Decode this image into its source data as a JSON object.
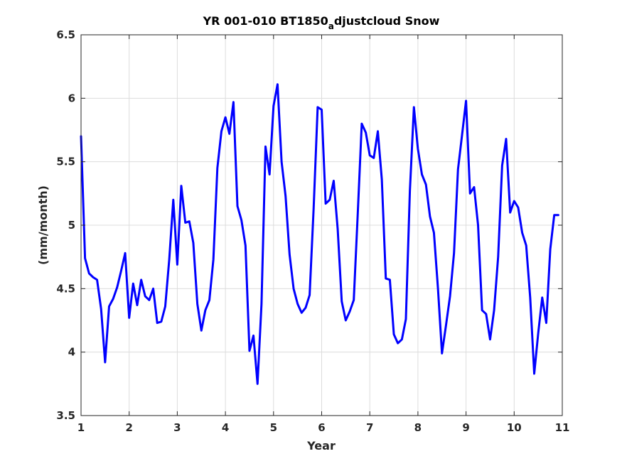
{
  "chart_data": {
    "type": "line",
    "title": "YR 001-010 BT1850",
    "title_subscript": "a",
    "title_tail": "djustcloud Snow",
    "xlabel": "Year",
    "ylabel": "(mm/month)",
    "xlim": [
      1,
      11
    ],
    "ylim": [
      3.5,
      6.5
    ],
    "xticks": [
      1,
      2,
      3,
      4,
      5,
      6,
      7,
      8,
      9,
      10,
      11
    ],
    "yticks": [
      3.5,
      4,
      4.5,
      5,
      5.5,
      6,
      6.5
    ],
    "xtick_labels": [
      "1",
      "2",
      "3",
      "4",
      "5",
      "6",
      "7",
      "8",
      "9",
      "10",
      "11"
    ],
    "ytick_labels": [
      "3.5",
      "4",
      "4.5",
      "5",
      "5.5",
      "6",
      "6.5"
    ],
    "grid": true,
    "series": [
      {
        "color": "#0000ff",
        "x": [
          1.0,
          1.083,
          1.167,
          1.25,
          1.333,
          1.417,
          1.5,
          1.583,
          1.667,
          1.75,
          1.833,
          1.917,
          2.0,
          2.083,
          2.167,
          2.25,
          2.333,
          2.417,
          2.5,
          2.583,
          2.667,
          2.75,
          2.833,
          2.917,
          3.0,
          3.083,
          3.167,
          3.25,
          3.333,
          3.417,
          3.5,
          3.583,
          3.667,
          3.75,
          3.833,
          3.917,
          4.0,
          4.083,
          4.167,
          4.25,
          4.333,
          4.417,
          4.5,
          4.583,
          4.667,
          4.75,
          4.833,
          4.917,
          5.0,
          5.083,
          5.167,
          5.25,
          5.333,
          5.417,
          5.5,
          5.583,
          5.667,
          5.75,
          5.833,
          5.917,
          6.0,
          6.083,
          6.167,
          6.25,
          6.333,
          6.417,
          6.5,
          6.583,
          6.667,
          6.75,
          6.833,
          6.917,
          7.0,
          7.083,
          7.167,
          7.25,
          7.333,
          7.417,
          7.5,
          7.583,
          7.667,
          7.75,
          7.833,
          7.917,
          8.0,
          8.083,
          8.167,
          8.25,
          8.333,
          8.417,
          8.5,
          8.583,
          8.667,
          8.75,
          8.833,
          8.917,
          9.0,
          9.083,
          9.167,
          9.25,
          9.333,
          9.417,
          9.5,
          9.583,
          9.667,
          9.75,
          9.833,
          9.917,
          10.0,
          10.083,
          10.167,
          10.25,
          10.333,
          10.417,
          10.5,
          10.583,
          10.667,
          10.75,
          10.833,
          10.917
        ],
        "y": [
          5.7,
          4.74,
          4.62,
          4.59,
          4.57,
          4.34,
          3.92,
          4.36,
          4.42,
          4.51,
          4.64,
          4.78,
          4.27,
          4.54,
          4.37,
          4.57,
          4.44,
          4.41,
          4.5,
          4.23,
          4.24,
          4.36,
          4.73,
          5.2,
          4.69,
          5.31,
          5.02,
          5.03,
          4.86,
          4.38,
          4.17,
          4.33,
          4.41,
          4.73,
          5.45,
          5.74,
          5.85,
          5.72,
          5.97,
          5.15,
          5.04,
          4.84,
          4.01,
          4.13,
          3.75,
          4.38,
          5.62,
          5.4,
          5.94,
          6.11,
          5.5,
          5.23,
          4.77,
          4.5,
          4.38,
          4.31,
          4.35,
          4.45,
          5.13,
          5.93,
          5.91,
          5.17,
          5.2,
          5.35,
          4.97,
          4.4,
          4.25,
          4.32,
          4.41,
          5.09,
          5.8,
          5.73,
          5.55,
          5.53,
          5.74,
          5.36,
          4.58,
          4.57,
          4.14,
          4.07,
          4.1,
          4.26,
          5.27,
          5.93,
          5.6,
          5.4,
          5.32,
          5.07,
          4.94,
          4.5,
          3.99,
          4.21,
          4.44,
          4.78,
          5.44,
          5.71,
          5.98,
          5.25,
          5.3,
          5.0,
          4.33,
          4.3,
          4.1,
          4.33,
          4.75,
          5.47,
          5.68,
          5.1,
          5.19,
          5.14,
          4.94,
          4.84,
          4.43,
          3.83,
          4.15,
          4.43,
          4.23,
          4.81,
          5.08,
          5.08
        ]
      }
    ]
  }
}
